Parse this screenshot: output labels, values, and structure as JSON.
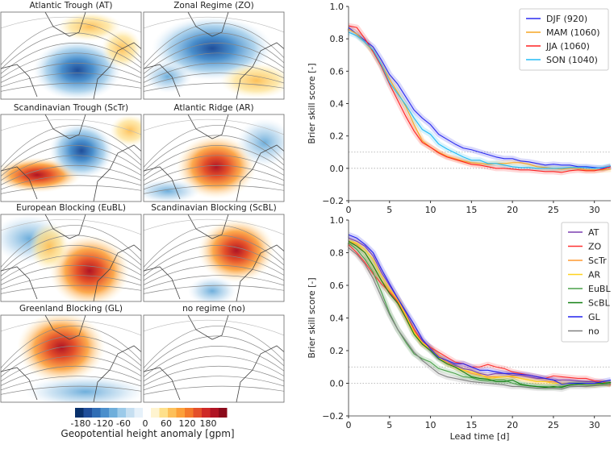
{
  "maps": {
    "panels": [
      {
        "id": "AT",
        "title": "Atlantic Trough (AT)"
      },
      {
        "id": "ZO",
        "title": "Zonal Regime (ZO)"
      },
      {
        "id": "ScTr",
        "title": "Scandinavian Trough (ScTr)"
      },
      {
        "id": "AR",
        "title": "Atlantic Ridge (AR)"
      },
      {
        "id": "EuBL",
        "title": "European Blocking (EuBL)"
      },
      {
        "id": "ScBL",
        "title": "Scandinavian Blocking (ScBL)"
      },
      {
        "id": "GL",
        "title": "Greenland Blocking (GL)"
      },
      {
        "id": "no",
        "title": "no regime (no)"
      }
    ],
    "colorbar": {
      "label": "Geopotential height anomaly [gpm]",
      "ticks": [
        "-180",
        "-120",
        "-60",
        "0",
        "60",
        "120",
        "180"
      ],
      "blues": [
        "#08306b",
        "#1f4e9a",
        "#2f6db5",
        "#4a8fcc",
        "#6eaedb",
        "#9ccae9",
        "#c6dff1",
        "#e6f1fa"
      ],
      "reds": [
        "#fff4d0",
        "#fee08b",
        "#fdc05a",
        "#fca03a",
        "#f47a2b",
        "#e4502a",
        "#cf2a27",
        "#b01424",
        "#8b0a1a"
      ]
    }
  },
  "chart_data": [
    {
      "type": "line",
      "title": "",
      "xlabel": "",
      "ylabel": "Brier skill score [-]",
      "xlim": [
        0,
        32
      ],
      "ylim": [
        -0.2,
        1.0
      ],
      "xticks": [
        "0",
        "5",
        "10",
        "15",
        "20",
        "25",
        "30"
      ],
      "yticks": [
        "−0.2",
        "0.0",
        "0.2",
        "0.4",
        "0.6",
        "0.8",
        "1.0"
      ],
      "reference_lines": [
        0.0,
        0.1
      ],
      "legend": "top-right",
      "x": [
        0,
        1,
        2,
        3,
        4,
        5,
        6,
        7,
        8,
        9,
        10,
        11,
        12,
        13,
        14,
        15,
        16,
        17,
        18,
        19,
        20,
        21,
        22,
        23,
        24,
        25,
        26,
        27,
        28,
        29,
        30,
        31,
        32
      ],
      "series": [
        {
          "name": "DJF (920)",
          "color": "#2b2bf0",
          "values": [
            0.87,
            0.83,
            0.79,
            0.75,
            0.67,
            0.58,
            0.52,
            0.44,
            0.36,
            0.31,
            0.27,
            0.21,
            0.18,
            0.15,
            0.125,
            0.115,
            0.1,
            0.085,
            0.07,
            0.06,
            0.06,
            0.045,
            0.04,
            0.03,
            0.02,
            0.025,
            0.02,
            0.02,
            0.01,
            0.01,
            0.005,
            0.0,
            0.01
          ]
        },
        {
          "name": "MAM (1060)",
          "color": "#f5a623",
          "values": [
            0.86,
            0.83,
            0.78,
            0.72,
            0.64,
            0.55,
            0.47,
            0.38,
            0.27,
            0.17,
            0.13,
            0.1,
            0.075,
            0.06,
            0.045,
            0.035,
            0.03,
            0.025,
            0.03,
            0.03,
            0.035,
            0.035,
            0.025,
            0.01,
            0.005,
            0.0,
            -0.005,
            0.0,
            0.0,
            -0.01,
            -0.01,
            -0.01,
            -0.005
          ]
        },
        {
          "name": "JJA (1060)",
          "color": "#ff2222",
          "values": [
            0.88,
            0.87,
            0.8,
            0.72,
            0.63,
            0.52,
            0.42,
            0.32,
            0.23,
            0.16,
            0.13,
            0.095,
            0.07,
            0.055,
            0.04,
            0.025,
            0.02,
            0.01,
            0.0,
            0.0,
            -0.005,
            -0.01,
            -0.01,
            -0.015,
            -0.02,
            -0.02,
            -0.025,
            -0.015,
            -0.01,
            -0.015,
            -0.015,
            -0.005,
            0.01
          ]
        },
        {
          "name": "SON (1040)",
          "color": "#22bbf5",
          "values": [
            0.84,
            0.82,
            0.78,
            0.73,
            0.64,
            0.53,
            0.46,
            0.39,
            0.31,
            0.24,
            0.21,
            0.15,
            0.12,
            0.095,
            0.07,
            0.05,
            0.05,
            0.03,
            0.03,
            0.02,
            0.01,
            0.005,
            0.005,
            0.0,
            0.0,
            0.0,
            0.0,
            0.005,
            0.005,
            0.005,
            0.0,
            0.005,
            0.015
          ]
        }
      ]
    },
    {
      "type": "line",
      "title": "",
      "xlabel": "Lead time [d]",
      "ylabel": "Brier skill score [-]",
      "xlim": [
        0,
        32
      ],
      "ylim": [
        -0.2,
        1.0
      ],
      "xticks": [
        "0",
        "5",
        "10",
        "15",
        "20",
        "25",
        "30"
      ],
      "yticks": [
        "−0.2",
        "0.0",
        "0.2",
        "0.4",
        "0.6",
        "0.8",
        "1.0"
      ],
      "reference_lines": [
        0.0,
        0.1
      ],
      "legend": "top-right",
      "x": [
        0,
        1,
        2,
        3,
        4,
        5,
        6,
        7,
        8,
        9,
        10,
        11,
        12,
        13,
        14,
        15,
        16,
        17,
        18,
        19,
        20,
        21,
        22,
        23,
        24,
        25,
        26,
        27,
        28,
        29,
        30,
        31,
        32
      ],
      "series": [
        {
          "name": "AT",
          "color": "#7b3fb0",
          "values": [
            0.89,
            0.87,
            0.84,
            0.78,
            0.68,
            0.6,
            0.52,
            0.43,
            0.33,
            0.26,
            0.22,
            0.16,
            0.13,
            0.11,
            0.09,
            0.08,
            0.06,
            0.05,
            0.06,
            0.06,
            0.05,
            0.05,
            0.04,
            0.03,
            0.03,
            0.02,
            0.02,
            0.02,
            0.015,
            0.01,
            0.01,
            0.0,
            0.0
          ]
        },
        {
          "name": "ZO",
          "color": "#ff3333",
          "values": [
            0.85,
            0.8,
            0.74,
            0.67,
            0.61,
            0.56,
            0.5,
            0.41,
            0.33,
            0.25,
            0.22,
            0.19,
            0.16,
            0.13,
            0.12,
            0.1,
            0.1,
            0.115,
            0.1,
            0.09,
            0.07,
            0.06,
            0.05,
            0.04,
            0.03,
            0.045,
            0.04,
            0.035,
            0.03,
            0.03,
            0.015,
            0.01,
            -0.01
          ]
        },
        {
          "name": "ScTr",
          "color": "#ff9a30",
          "values": [
            0.87,
            0.85,
            0.8,
            0.72,
            0.63,
            0.57,
            0.51,
            0.41,
            0.32,
            0.24,
            0.21,
            0.17,
            0.13,
            0.1,
            0.08,
            0.06,
            0.05,
            0.04,
            0.04,
            0.04,
            0.04,
            0.03,
            0.02,
            0.01,
            0.01,
            0.01,
            0.0,
            0.0,
            0.0,
            -0.01,
            -0.01,
            0.0,
            -0.005
          ]
        },
        {
          "name": "AR",
          "color": "#ffd21f",
          "values": [
            0.87,
            0.86,
            0.82,
            0.76,
            0.66,
            0.58,
            0.51,
            0.42,
            0.31,
            0.25,
            0.21,
            0.16,
            0.12,
            0.1,
            0.08,
            0.07,
            0.055,
            0.03,
            0.035,
            0.04,
            0.045,
            0.03,
            0.02,
            0.01,
            0.01,
            0.0,
            0.0,
            0.0,
            0.0,
            0.0,
            0.0,
            0.0,
            0.0
          ]
        },
        {
          "name": "EuBL",
          "color": "#4aa04a",
          "values": [
            0.86,
            0.82,
            0.76,
            0.68,
            0.56,
            0.43,
            0.33,
            0.25,
            0.18,
            0.15,
            0.13,
            0.09,
            0.075,
            0.06,
            0.04,
            0.035,
            0.02,
            0.015,
            0.02,
            0.02,
            0.0,
            -0.01,
            -0.015,
            -0.02,
            -0.02,
            -0.025,
            -0.02,
            -0.01,
            -0.005,
            -0.01,
            -0.01,
            -0.005,
            0.0
          ]
        },
        {
          "name": "ScBL",
          "color": "#138013",
          "values": [
            0.87,
            0.84,
            0.8,
            0.72,
            0.63,
            0.55,
            0.49,
            0.4,
            0.3,
            0.24,
            0.2,
            0.15,
            0.12,
            0.1,
            0.07,
            0.04,
            0.03,
            0.025,
            0.01,
            0.01,
            0.02,
            -0.005,
            -0.015,
            -0.02,
            -0.025,
            -0.02,
            -0.025,
            -0.01,
            -0.005,
            0.0,
            0.0,
            0.0,
            0.005
          ]
        },
        {
          "name": "GL",
          "color": "#2222ee",
          "values": [
            0.91,
            0.89,
            0.85,
            0.8,
            0.7,
            0.61,
            0.52,
            0.44,
            0.36,
            0.27,
            0.21,
            0.16,
            0.14,
            0.12,
            0.12,
            0.1,
            0.08,
            0.08,
            0.07,
            0.06,
            0.06,
            0.055,
            0.05,
            0.04,
            0.03,
            0.02,
            -0.005,
            0.0,
            0.0,
            0.0,
            0.0,
            0.01,
            0.02
          ]
        },
        {
          "name": "no",
          "color": "#808080",
          "values": [
            0.83,
            0.79,
            0.73,
            0.64,
            0.53,
            0.42,
            0.33,
            0.26,
            0.19,
            0.14,
            0.1,
            0.06,
            0.04,
            0.03,
            0.02,
            0.01,
            0.005,
            0.0,
            -0.005,
            -0.01,
            -0.02,
            -0.02,
            -0.025,
            -0.03,
            -0.03,
            -0.03,
            -0.035,
            -0.02,
            -0.02,
            -0.02,
            -0.015,
            -0.01,
            -0.005
          ]
        }
      ]
    }
  ]
}
